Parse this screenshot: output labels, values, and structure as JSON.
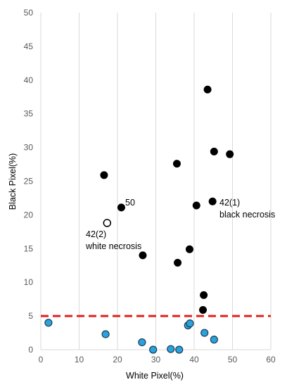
{
  "chart_data": {
    "type": "scatter",
    "title": "",
    "xlabel": "White Pixel(%)",
    "ylabel": "Black Pixel(%)",
    "xlim": [
      0,
      60
    ],
    "ylim": [
      0,
      50
    ],
    "x_ticks": [
      "0",
      "10",
      "20",
      "30",
      "40",
      "50",
      "60"
    ],
    "y_ticks": [
      "0",
      "5",
      "10",
      "15",
      "20",
      "25",
      "30",
      "35",
      "40",
      "45",
      "50"
    ],
    "grid": "vertical",
    "threshold_line": {
      "y": 5,
      "color": "#e3201b",
      "style": "dashed"
    },
    "colors": {
      "black_points": "#000000",
      "blue_points": "#29a3dc",
      "open_points": "#ffffff",
      "threshold": "#e3201b"
    },
    "series": [
      {
        "marker": "black-filled",
        "points": [
          {
            "x": 43.5,
            "y": 38.6
          },
          {
            "x": 45.2,
            "y": 29.4
          },
          {
            "x": 49.3,
            "y": 29.0
          },
          {
            "x": 35.5,
            "y": 27.6
          },
          {
            "x": 16.5,
            "y": 25.9
          },
          {
            "x": 44.8,
            "y": 22.0
          },
          {
            "x": 21.0,
            "y": 21.1
          },
          {
            "x": 40.6,
            "y": 21.4
          },
          {
            "x": 38.8,
            "y": 14.9
          },
          {
            "x": 26.6,
            "y": 14.0
          },
          {
            "x": 35.7,
            "y": 12.9
          },
          {
            "x": 42.5,
            "y": 8.1
          },
          {
            "x": 42.3,
            "y": 5.9
          }
        ]
      },
      {
        "marker": "blue-filled",
        "points": [
          {
            "x": 2.0,
            "y": 4.0
          },
          {
            "x": 16.9,
            "y": 2.3
          },
          {
            "x": 26.4,
            "y": 1.1
          },
          {
            "x": 29.3,
            "y": 0.0
          },
          {
            "x": 33.9,
            "y": 0.1
          },
          {
            "x": 36.1,
            "y": 0.0
          },
          {
            "x": 38.4,
            "y": 3.6
          },
          {
            "x": 38.9,
            "y": 3.9
          },
          {
            "x": 42.7,
            "y": 2.5
          },
          {
            "x": 45.2,
            "y": 1.5
          }
        ]
      },
      {
        "marker": "open-circle",
        "points": [
          {
            "x": 17.3,
            "y": 18.8
          }
        ]
      }
    ],
    "annotations": [
      {
        "text": "50"
      },
      {
        "text": "42(1)"
      },
      {
        "text": "black necrosis"
      },
      {
        "text": "42(2)"
      },
      {
        "text": "white necrosis"
      }
    ]
  }
}
